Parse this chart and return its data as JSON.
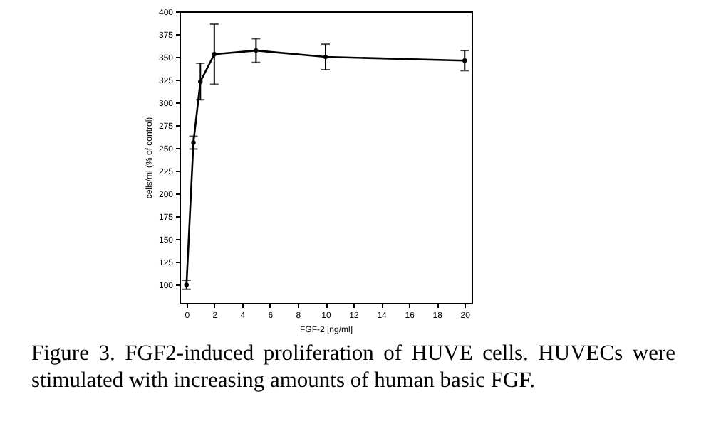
{
  "chart_data": {
    "type": "line",
    "xlabel": "FGF-2 [ng/ml]",
    "ylabel": "cells/ml (% of control)",
    "x": [
      0,
      0.5,
      1,
      2,
      5,
      10,
      20
    ],
    "values": [
      100,
      256,
      323,
      353,
      357,
      350,
      346
    ],
    "errors": [
      5,
      7,
      20,
      33,
      13,
      14,
      11
    ],
    "color": "#000000",
    "marker": "circle",
    "line_style": "solid",
    "grid": false,
    "xlim": [
      -0.5,
      20.5
    ],
    "xticks": [
      0,
      2,
      4,
      6,
      8,
      10,
      12,
      14,
      16,
      18,
      20
    ],
    "ylim": [
      80,
      400
    ],
    "yticks": [
      100,
      125,
      150,
      175,
      200,
      225,
      250,
      275,
      300,
      325,
      350,
      375,
      400
    ],
    "annotations": [
      "Figure 3. FGF2-induced proliferation of HUVE cells. HUVECs were stimulated with increasing amounts of human basic FGF."
    ]
  }
}
